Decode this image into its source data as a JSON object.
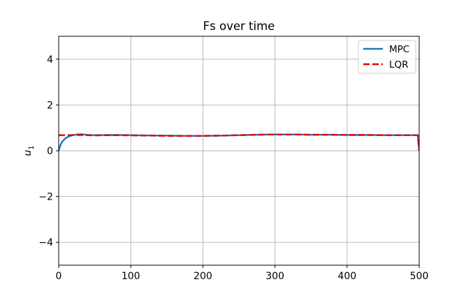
{
  "chart_data": {
    "type": "line",
    "title": "Fs over time",
    "xlabel": "",
    "ylabel": "u",
    "ylabel_subscript": "1",
    "xlim": [
      0,
      500
    ],
    "ylim": [
      -5,
      5
    ],
    "xticks": [
      0,
      100,
      200,
      300,
      400,
      500
    ],
    "yticks": [
      -4,
      -2,
      0,
      2,
      4
    ],
    "xtick_labels": [
      "0",
      "100",
      "200",
      "300",
      "400",
      "500"
    ],
    "ytick_labels": [
      "−4",
      "−2",
      "0",
      "2",
      "4"
    ],
    "grid": true,
    "legend_position": "top-right",
    "series": [
      {
        "name": "MPC",
        "color": "#1f77b4",
        "style": "solid",
        "x": [
          0,
          2,
          5,
          10,
          15,
          20,
          25,
          30,
          35,
          40,
          50,
          75,
          100,
          125,
          150,
          175,
          200,
          225,
          250,
          275,
          300,
          325,
          350,
          375,
          400,
          425,
          450,
          475,
          498,
          500
        ],
        "y": [
          0.0,
          0.22,
          0.4,
          0.56,
          0.64,
          0.68,
          0.71,
          0.72,
          0.71,
          0.69,
          0.68,
          0.69,
          0.68,
          0.67,
          0.66,
          0.65,
          0.65,
          0.66,
          0.68,
          0.7,
          0.71,
          0.71,
          0.7,
          0.7,
          0.69,
          0.69,
          0.68,
          0.68,
          0.68,
          0.0
        ]
      },
      {
        "name": "LQR",
        "color": "#e50000",
        "style": "dashed",
        "x": [
          0,
          10,
          25,
          50,
          75,
          100,
          125,
          150,
          175,
          200,
          225,
          250,
          275,
          300,
          325,
          350,
          375,
          400,
          425,
          450,
          475,
          498,
          500
        ],
        "y": [
          0.68,
          0.68,
          0.69,
          0.67,
          0.68,
          0.67,
          0.66,
          0.65,
          0.65,
          0.65,
          0.66,
          0.68,
          0.7,
          0.71,
          0.71,
          0.7,
          0.7,
          0.69,
          0.69,
          0.68,
          0.68,
          0.68,
          0.0
        ]
      }
    ]
  }
}
